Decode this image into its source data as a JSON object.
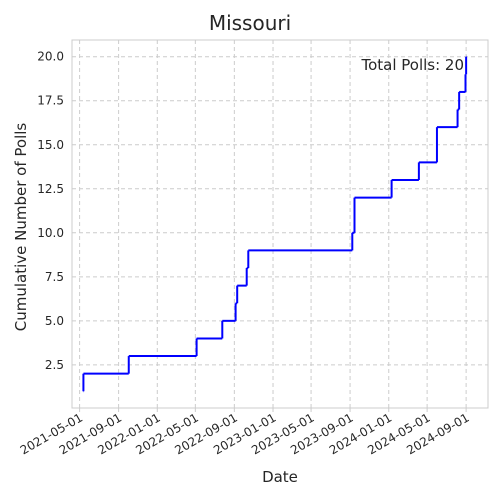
{
  "chart_data": {
    "type": "line",
    "style": "step",
    "title": "Missouri",
    "xlabel": "Date",
    "ylabel": "Cumulative Number of Polls",
    "annotation": "Total Polls: 20",
    "grid": true,
    "line_color": "#0000ff",
    "xlim": [
      "2021-04-07",
      "2024-11-09"
    ],
    "ylim": [
      0.05,
      20.95
    ],
    "x_ticks": [
      "2021-05-01",
      "2021-09-01",
      "2022-01-01",
      "2022-05-01",
      "2022-09-01",
      "2023-01-01",
      "2023-05-01",
      "2023-09-01",
      "2024-01-01",
      "2024-05-01",
      "2024-09-01"
    ],
    "y_ticks": [
      2.5,
      5.0,
      7.5,
      10.0,
      12.5,
      15.0,
      17.5,
      20.0
    ],
    "y_tick_labels": [
      "2.5",
      "5.0",
      "7.5",
      "10.0",
      "12.5",
      "15.0",
      "17.5",
      "20.0"
    ],
    "series": [
      {
        "points": [
          {
            "x": "2021-05-12",
            "y": 1
          },
          {
            "x": "2021-05-13",
            "y": 2
          },
          {
            "x": "2021-10-03",
            "y": 3
          },
          {
            "x": "2022-05-05",
            "y": 4
          },
          {
            "x": "2022-07-25",
            "y": 5
          },
          {
            "x": "2022-09-05",
            "y": 6
          },
          {
            "x": "2022-09-10",
            "y": 7
          },
          {
            "x": "2022-10-10",
            "y": 8
          },
          {
            "x": "2022-10-15",
            "y": 9
          },
          {
            "x": "2023-09-08",
            "y": 10
          },
          {
            "x": "2023-09-15",
            "y": 12
          },
          {
            "x": "2024-01-10",
            "y": 13
          },
          {
            "x": "2024-04-05",
            "y": 14
          },
          {
            "x": "2024-06-01",
            "y": 16
          },
          {
            "x": "2024-08-05",
            "y": 17
          },
          {
            "x": "2024-08-10",
            "y": 18
          },
          {
            "x": "2024-08-30",
            "y": 19
          },
          {
            "x": "2024-09-01",
            "y": 20
          }
        ],
        "end_x": "2024-09-02"
      }
    ]
  }
}
